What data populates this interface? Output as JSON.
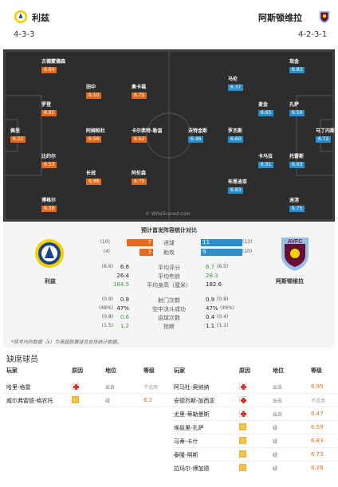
{
  "home": {
    "name": "利兹",
    "formation": "4-3-3",
    "label": "利兹"
  },
  "away": {
    "name": "阿斯顿维拉",
    "formation": "4-2-3-1",
    "label": "阿斯顿维拉"
  },
  "home_players": [
    {
      "name": "古德蒙德森",
      "rating": "6.64"
    },
    {
      "name": "田中",
      "rating": "6.10"
    },
    {
      "name": "奥卡福",
      "rating": "6.75"
    },
    {
      "name": "罗登",
      "rating": "6.91"
    },
    {
      "name": "佩里",
      "rating": "6.22"
    },
    {
      "name": "阿姆帕杜",
      "rating": "6.56"
    },
    {
      "name": "卡尔弗特-勒温",
      "rating": "6.52"
    },
    {
      "name": "比约尔",
      "rating": "6.53"
    },
    {
      "name": "长冠",
      "rating": "6.98"
    },
    {
      "name": "阿伦森",
      "rating": "6.75"
    },
    {
      "name": "博格尔",
      "rating": "6.39"
    }
  ],
  "away_players": [
    {
      "name": "现金",
      "rating": "6.83"
    },
    {
      "name": "马伦",
      "rating": "6.37"
    },
    {
      "name": "麦金",
      "rating": "6.65"
    },
    {
      "name": "孔萨",
      "rating": "6.59"
    },
    {
      "name": "沃特金斯",
      "rating": "6.46"
    },
    {
      "name": "罗杰斯",
      "rating": "6.60"
    },
    {
      "name": "马丁内斯",
      "rating": "6.72"
    },
    {
      "name": "卡马拉",
      "rating": "6.91"
    },
    {
      "name": "托雷斯",
      "rating": "6.63"
    },
    {
      "name": "布恩迪亚",
      "rating": "6.83"
    },
    {
      "name": "迪涅",
      "rating": "6.75"
    }
  ],
  "watermark": "© WhoScored.com",
  "stats": {
    "title": "预计首发阵容统计对比",
    "bars": [
      {
        "label": "进球",
        "home": "7",
        "away": "11",
        "home_pct": "(10)",
        "away_pct": "(13)",
        "home_frac": 0.39,
        "away_frac": 0.61
      },
      {
        "label": "助攻",
        "home": "3",
        "away": "9",
        "home_pct": "(4)",
        "away_pct": "(10)",
        "home_frac": 0.25,
        "away_frac": 0.75
      }
    ],
    "rows": [
      {
        "label": "平均评分",
        "home": "6.6",
        "away": "6.7",
        "home_sub": "(6.6)",
        "away_sub": "(6.5)",
        "hg": false,
        "ag": true
      },
      {
        "label": "平均年龄",
        "home": "26.4",
        "away": "28.3",
        "home_sub": "",
        "away_sub": "",
        "hg": false,
        "ag": true
      },
      {
        "label": "平均身高（厘米）",
        "home": "184.5",
        "away": "182.6",
        "home_sub": "",
        "away_sub": "",
        "hg": true,
        "ag": false
      },
      {
        "label": "射门次数",
        "home": "0.9",
        "away": "0.9",
        "home_sub": "(0.9)",
        "away_sub": "(0.8)",
        "hg": false,
        "ag": false
      },
      {
        "label": "空中决斗成功",
        "home": "47%",
        "away": "47%",
        "home_sub": "(48%)",
        "away_sub": "(49%)",
        "hg": false,
        "ag": false
      },
      {
        "label": "运球次数",
        "home": "0.6",
        "away": "0.4",
        "home_sub": "(0.8)",
        "away_sub": "(0.4)",
        "hg": true,
        "ag": false
      },
      {
        "label": "抢断",
        "home": "1.2",
        "away": "1.1",
        "home_sub": "(1.5)",
        "away_sub": "(1.1)",
        "hg": true,
        "ag": false
      }
    ],
    "note": "*括号内的数据（x）为英超联赛球员总体统计数据。"
  },
  "injuries": {
    "title": "缺席球员",
    "headers": {
      "player": "玩家",
      "reason": "原因",
      "position": "地位",
      "rating": "等级"
    },
    "home": [
      {
        "name": "哈里-格雷",
        "reason": "injury",
        "status": "出去",
        "rating": "不适用",
        "na": true
      },
      {
        "name": "威尔弗雷德-格农托",
        "reason": "doubt",
        "status": "疑",
        "rating": "6.2",
        "na": false
      }
    ],
    "away": [
      {
        "name": "阿马杜-奥纳纳",
        "reason": "injury",
        "status": "出去",
        "rating": "6.95",
        "na": false
      },
      {
        "name": "安德烈斯-加西亚",
        "reason": "injury",
        "status": "出去",
        "rating": "不适用",
        "na": true
      },
      {
        "name": "尤里-蒂勒曼斯",
        "reason": "injury",
        "status": "出去",
        "rating": "6.47",
        "na": false
      },
      {
        "name": "埃兹里-孔萨",
        "reason": "doubt",
        "status": "疑",
        "rating": "6.59",
        "na": false
      },
      {
        "name": "马蒂-卡什",
        "reason": "doubt",
        "status": "疑",
        "rating": "6.83",
        "na": false
      },
      {
        "name": "泰隆-明斯",
        "reason": "doubt",
        "status": "疑",
        "rating": "6.73",
        "na": false
      },
      {
        "name": "拉玛尔-博加德",
        "reason": "doubt",
        "status": "疑",
        "rating": "6.26",
        "na": false
      }
    ]
  },
  "colors": {
    "home_bar": "#e46a1d",
    "away_bar": "#2e8fc8",
    "pitch": "#2d2d2d",
    "positive": "#3c9c3c"
  }
}
